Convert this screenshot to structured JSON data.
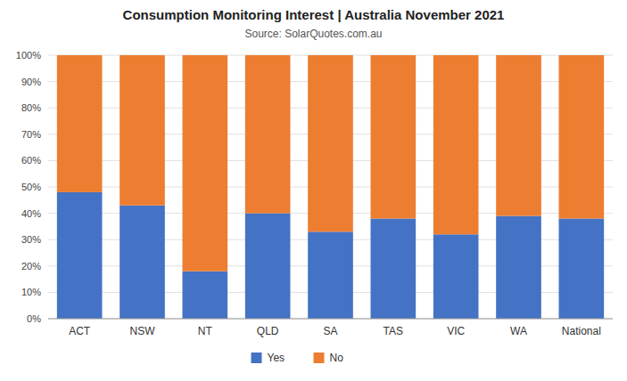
{
  "chart_data": {
    "type": "bar",
    "stacked": true,
    "title": "Consumption Monitoring Interest  |  Australia November 2021",
    "subtitle": "Source: SolarQuotes.com.au",
    "categories": [
      "ACT",
      "NSW",
      "NT",
      "QLD",
      "SA",
      "TAS",
      "VIC",
      "WA",
      "National"
    ],
    "series": [
      {
        "name": "Yes",
        "color": "#4472C4",
        "values": [
          48,
          43,
          18,
          40,
          33,
          38,
          32,
          39,
          38
        ]
      },
      {
        "name": "No",
        "color": "#ED7D31",
        "values": [
          52,
          57,
          82,
          60,
          67,
          62,
          68,
          61,
          62
        ]
      }
    ],
    "ylim": [
      0,
      100
    ],
    "yticks": [
      {
        "value": 0,
        "label": "0%"
      },
      {
        "value": 10,
        "label": "10%"
      },
      {
        "value": 20,
        "label": "20%"
      },
      {
        "value": 30,
        "label": "30%"
      },
      {
        "value": 40,
        "label": "40%"
      },
      {
        "value": 50,
        "label": "50%"
      },
      {
        "value": 60,
        "label": "60%"
      },
      {
        "value": 70,
        "label": "70%"
      },
      {
        "value": 80,
        "label": "80%"
      },
      {
        "value": 90,
        "label": "90%"
      },
      {
        "value": 100,
        "label": "100%"
      }
    ],
    "grid": true,
    "legend": "bottom"
  }
}
